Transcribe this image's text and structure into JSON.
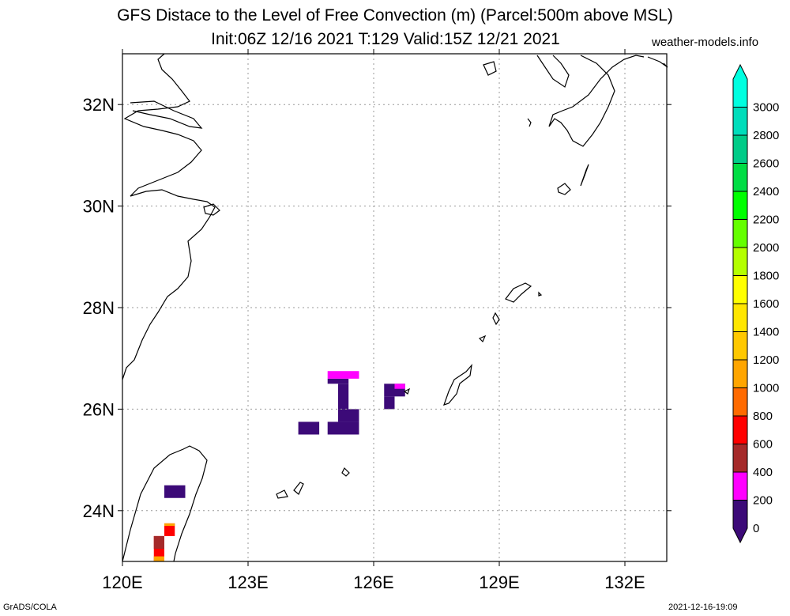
{
  "title_line1": "GFS Distace to the Level of Free Convection (m) (Parcel:500m above MSL)",
  "title_line2": "Init:06Z 12/16 2021 T:129 Valid:15Z 12/21 2021",
  "site": "weather-models.info",
  "credit": "GrADS/COLA",
  "timestamp": "2021-12-16-19:09",
  "map": {
    "lon_range": [
      120,
      133
    ],
    "lat_range": [
      23,
      33
    ],
    "lon_ticks": [
      {
        "value": 120,
        "label": "120E"
      },
      {
        "value": 123,
        "label": "123E"
      },
      {
        "value": 126,
        "label": "126E"
      },
      {
        "value": 129,
        "label": "129E"
      },
      {
        "value": 132,
        "label": "132E"
      }
    ],
    "lat_ticks": [
      {
        "value": 24,
        "label": "24N"
      },
      {
        "value": 26,
        "label": "26N"
      },
      {
        "value": 28,
        "label": "28N"
      },
      {
        "value": 30,
        "label": "30N"
      },
      {
        "value": 32,
        "label": "32N"
      }
    ],
    "grid": true
  },
  "colorbar": {
    "levels": [
      "0",
      "200",
      "400",
      "600",
      "800",
      "1000",
      "1200",
      "1400",
      "1600",
      "1800",
      "2000",
      "2200",
      "2400",
      "2600",
      "2800",
      "3000"
    ],
    "colors": [
      "#3c0a78",
      "#ff00ff",
      "#a52a2a",
      "#ff0000",
      "#ff6a00",
      "#ffa500",
      "#ffc800",
      "#ffe600",
      "#ffff00",
      "#b4ff00",
      "#64ff00",
      "#00ff00",
      "#00dd44",
      "#00cc88",
      "#00ddbb",
      "#00ffe0"
    ]
  },
  "field_cells": [
    {
      "lon": [
        124.2,
        124.7
      ],
      "lat": [
        25.5,
        25.75
      ],
      "color": "#3c0a78"
    },
    {
      "lon": [
        124.9,
        125.65
      ],
      "lat": [
        25.5,
        25.75
      ],
      "color": "#3c0a78"
    },
    {
      "lon": [
        125.15,
        125.65
      ],
      "lat": [
        25.75,
        26.0
      ],
      "color": "#3c0a78"
    },
    {
      "lon": [
        125.15,
        125.4
      ],
      "lat": [
        26.0,
        26.5
      ],
      "color": "#3c0a78"
    },
    {
      "lon": [
        124.9,
        125.4
      ],
      "lat": [
        26.5,
        26.6
      ],
      "color": "#3c0a78"
    },
    {
      "lon": [
        124.9,
        125.65
      ],
      "lat": [
        26.6,
        26.75
      ],
      "color": "#ff00ff"
    },
    {
      "lon": [
        126.25,
        126.5
      ],
      "lat": [
        26.0,
        26.25
      ],
      "color": "#3c0a78"
    },
    {
      "lon": [
        126.25,
        126.75
      ],
      "lat": [
        26.25,
        26.5
      ],
      "color": "#3c0a78"
    },
    {
      "lon": [
        126.5,
        126.75
      ],
      "lat": [
        26.4,
        26.5
      ],
      "color": "#ff00ff"
    },
    {
      "lon": [
        121.0,
        121.5
      ],
      "lat": [
        24.25,
        24.5
      ],
      "color": "#3c0a78"
    },
    {
      "lon": [
        121.0,
        121.25
      ],
      "lat": [
        23.5,
        23.75
      ],
      "color": "#ff0000"
    },
    {
      "lon": [
        121.0,
        121.25
      ],
      "lat": [
        23.7,
        23.75
      ],
      "color": "#ffa500"
    },
    {
      "lon": [
        120.75,
        121.0
      ],
      "lat": [
        23.0,
        23.5
      ],
      "color": "#ff0000"
    },
    {
      "lon": [
        120.75,
        121.0
      ],
      "lat": [
        23.0,
        23.1
      ],
      "color": "#ffa500"
    },
    {
      "lon": [
        120.75,
        121.0
      ],
      "lat": [
        23.25,
        23.5
      ],
      "color": "#a52a2a"
    }
  ]
}
